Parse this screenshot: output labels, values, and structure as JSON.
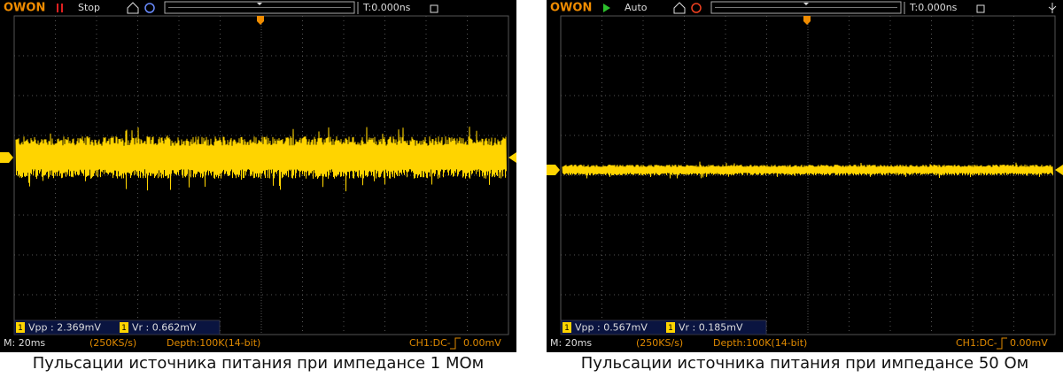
{
  "panels": [
    {
      "brand": "OWON",
      "run_state": "Stop",
      "time_offset": "T:0.000ns",
      "measurements": [
        {
          "channel": "1",
          "label": "Vpp : 2.369mV"
        },
        {
          "channel": "1",
          "label": "Vr : 0.662mV"
        }
      ],
      "timebase": "M: 20ms",
      "sample_rate": "(250KS/s)",
      "depth": "Depth:100K(14-bit)",
      "coupling": "CH1:DC-",
      "trigger_level": "0.00mV",
      "caption": "Пульсации источника питания при импедансе 1 МОм"
    },
    {
      "brand": "OWON",
      "run_state": "Auto",
      "time_offset": "T:0.000ns",
      "measurements": [
        {
          "channel": "1",
          "label": "Vpp : 0.567mV"
        },
        {
          "channel": "1",
          "label": "Vr : 0.185mV"
        }
      ],
      "timebase": "M: 20ms",
      "sample_rate": "(250KS/s)",
      "depth": "Depth:100K(14-bit)",
      "coupling": "CH1:DC-",
      "trigger_level": "0.00mV",
      "caption": "Пульсации источника питания при импедансе 50 Ом"
    }
  ]
}
